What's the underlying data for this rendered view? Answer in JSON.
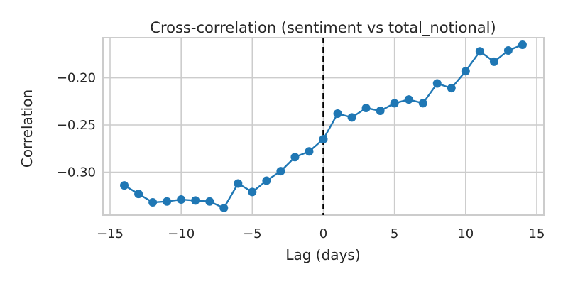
{
  "chart_data": {
    "type": "line",
    "title": "Cross-correlation (sentiment vs total_notional)",
    "xlabel": "Lag (days)",
    "ylabel": "Correlation",
    "xlim": [
      -15.5,
      15.5
    ],
    "ylim": [
      -0.3455,
      -0.1575
    ],
    "x_ticks": [
      -15,
      -10,
      -5,
      0,
      5,
      10,
      15
    ],
    "x_tick_labels": [
      "−15",
      "−10",
      "−5",
      "0",
      "5",
      "10",
      "15"
    ],
    "y_ticks": [
      -0.3,
      -0.25,
      -0.2
    ],
    "y_tick_labels": [
      "−0.30",
      "−0.25",
      "−0.20"
    ],
    "grid": true,
    "reference_line": {
      "x": 0,
      "style": "dashed",
      "color": "#000000"
    },
    "series": [
      {
        "color": "#1f77b4",
        "x": [
          -14,
          -13,
          -12,
          -11,
          -10,
          -9,
          -8,
          -7,
          -6,
          -5,
          -4,
          -3,
          -2,
          -1,
          0,
          1,
          2,
          3,
          4,
          5,
          6,
          7,
          8,
          9,
          10,
          11,
          12,
          13,
          14
        ],
        "y": [
          -0.314,
          -0.323,
          -0.332,
          -0.331,
          -0.329,
          -0.33,
          -0.331,
          -0.338,
          -0.312,
          -0.321,
          -0.309,
          -0.299,
          -0.284,
          -0.278,
          -0.265,
          -0.238,
          -0.242,
          -0.232,
          -0.235,
          -0.227,
          -0.223,
          -0.227,
          -0.206,
          -0.211,
          -0.193,
          -0.172,
          -0.183,
          -0.171,
          -0.165
        ]
      }
    ]
  }
}
